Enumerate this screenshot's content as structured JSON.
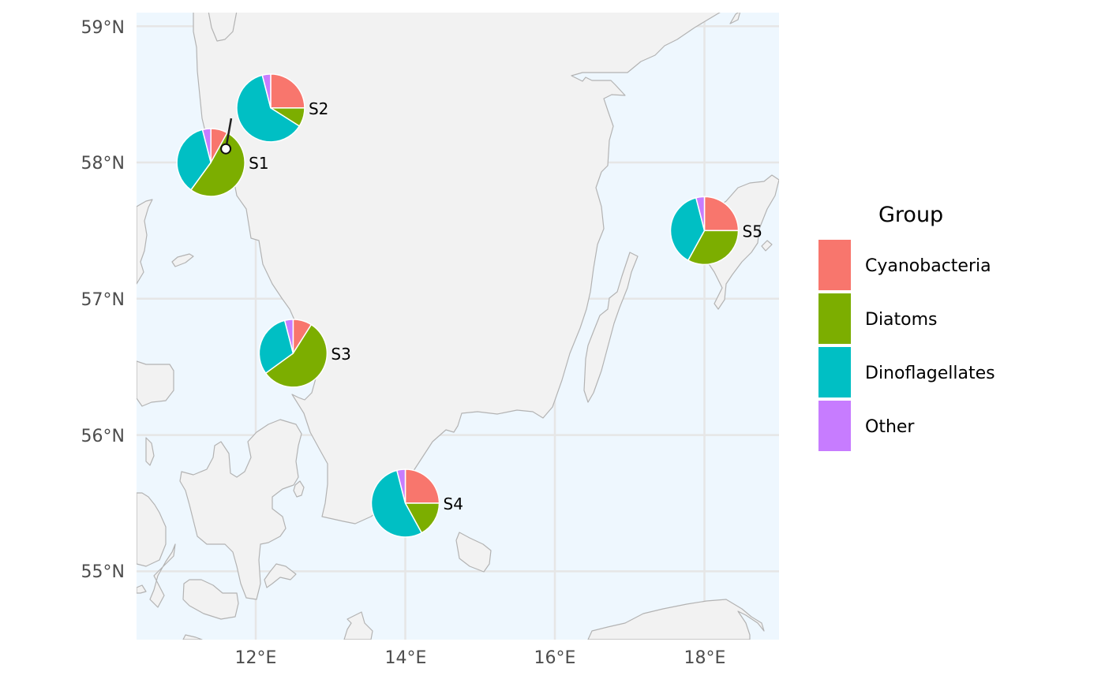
{
  "map": {
    "lon_range": [
      10.4,
      19.0
    ],
    "lat_range": [
      54.5,
      59.1
    ],
    "grid": true,
    "background": "#eef7fe",
    "land_color": "#f2f2f2",
    "x_ticks": [
      {
        "value": 12,
        "label": "12°E"
      },
      {
        "value": 14,
        "label": "14°E"
      },
      {
        "value": 16,
        "label": "16°E"
      },
      {
        "value": 18,
        "label": "18°E"
      }
    ],
    "y_ticks": [
      {
        "value": 59,
        "label": "59°N"
      },
      {
        "value": 58,
        "label": "58°N"
      },
      {
        "value": 57,
        "label": "57°N"
      },
      {
        "value": 56,
        "label": "56°N"
      },
      {
        "value": 55,
        "label": "55°N"
      }
    ]
  },
  "chart_data": {
    "type": "pie",
    "groups": [
      "Cyanobacteria",
      "Diatoms",
      "Dinoflagellates",
      "Other"
    ],
    "colors": [
      "#f8766d",
      "#7cae00",
      "#00bfc4",
      "#c77cff"
    ],
    "stations": [
      {
        "name": "S1",
        "lon": 11.6,
        "lat": 58.1,
        "pie_lon": 11.4,
        "pie_lat": 58.0,
        "displaced": true,
        "values": [
          0.08,
          0.52,
          0.36,
          0.04
        ]
      },
      {
        "name": "S2",
        "lon": 12.2,
        "lat": 58.4,
        "pie_lon": 12.2,
        "pie_lat": 58.4,
        "displaced": false,
        "values": [
          0.25,
          0.09,
          0.62,
          0.04
        ]
      },
      {
        "name": "S3",
        "lon": 12.5,
        "lat": 56.6,
        "pie_lon": 12.5,
        "pie_lat": 56.6,
        "displaced": false,
        "values": [
          0.09,
          0.56,
          0.31,
          0.04
        ]
      },
      {
        "name": "S4",
        "lon": 14.0,
        "lat": 55.5,
        "pie_lon": 14.0,
        "pie_lat": 55.5,
        "displaced": false,
        "values": [
          0.25,
          0.17,
          0.54,
          0.04
        ]
      },
      {
        "name": "S5",
        "lon": 18.0,
        "lat": 57.5,
        "pie_lon": 18.0,
        "pie_lat": 57.5,
        "displaced": false,
        "values": [
          0.25,
          0.33,
          0.38,
          0.04
        ]
      }
    ],
    "legend": {
      "title": "Group",
      "position": "right",
      "items": [
        {
          "label": "Cyanobacteria",
          "color": "#f8766d"
        },
        {
          "label": "Diatoms",
          "color": "#7cae00"
        },
        {
          "label": "Dinoflagellates",
          "color": "#00bfc4"
        },
        {
          "label": "Other",
          "color": "#c77cff"
        }
      ]
    }
  }
}
